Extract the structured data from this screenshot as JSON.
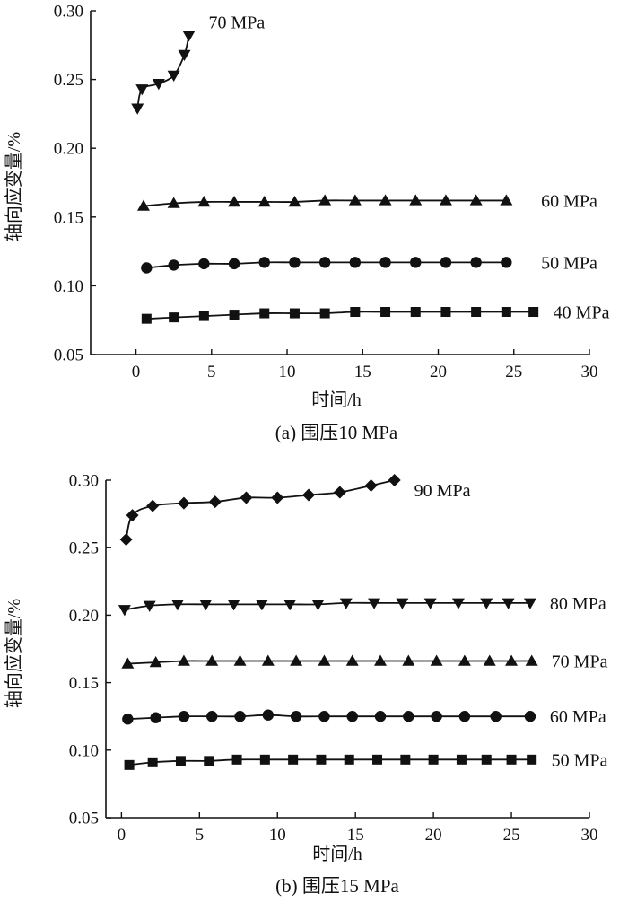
{
  "chart_data": [
    {
      "type": "scatter",
      "caption": "(a) 围压10 MPa",
      "xlabel": "时间/h",
      "ylabel": "轴向应变量/%",
      "xlim": [
        -3,
        30
      ],
      "ylim": [
        0.05,
        0.3
      ],
      "xticks": [
        0,
        5,
        10,
        15,
        20,
        25,
        30
      ],
      "yticks": [
        "0.05",
        "0.10",
        "0.15",
        "0.20",
        "0.25",
        "0.30"
      ],
      "grid": false,
      "series": [
        {
          "name": "70 MPa",
          "marker": "triangle-down",
          "x": [
            0.1,
            0.4,
            1.5,
            2.5,
            3.2,
            3.5
          ],
          "y": [
            0.229,
            0.243,
            0.247,
            0.253,
            0.268,
            0.282
          ]
        },
        {
          "name": "60 MPa",
          "marker": "triangle-up",
          "x": [
            0.5,
            2.5,
            4.5,
            6.5,
            8.5,
            10.5,
            12.5,
            14.5,
            16.5,
            18.5,
            20.5,
            22.5,
            24.5
          ],
          "y": [
            0.158,
            0.16,
            0.161,
            0.161,
            0.161,
            0.161,
            0.162,
            0.162,
            0.162,
            0.162,
            0.162,
            0.162,
            0.162
          ]
        },
        {
          "name": "50 MPa",
          "marker": "circle",
          "x": [
            0.7,
            2.5,
            4.5,
            6.5,
            8.5,
            10.5,
            12.5,
            14.5,
            16.5,
            18.5,
            20.5,
            22.5,
            24.5
          ],
          "y": [
            0.113,
            0.115,
            0.116,
            0.116,
            0.117,
            0.117,
            0.117,
            0.117,
            0.117,
            0.117,
            0.117,
            0.117,
            0.117
          ]
        },
        {
          "name": "40 MPa",
          "marker": "square",
          "x": [
            0.7,
            2.5,
            4.5,
            6.5,
            8.5,
            10.5,
            12.5,
            14.5,
            16.5,
            18.5,
            20.5,
            22.5,
            24.5,
            26.3
          ],
          "y": [
            0.076,
            0.077,
            0.078,
            0.079,
            0.08,
            0.08,
            0.08,
            0.081,
            0.081,
            0.081,
            0.081,
            0.081,
            0.081,
            0.081
          ]
        }
      ]
    },
    {
      "type": "scatter",
      "caption": "(b) 围压15 MPa",
      "xlabel": "时间/h",
      "ylabel": "轴向应变量/%",
      "xlim": [
        -1,
        30
      ],
      "ylim": [
        0.05,
        0.3
      ],
      "xticks": [
        0,
        5,
        10,
        15,
        20,
        25,
        30
      ],
      "yticks": [
        "0.05",
        "0.10",
        "0.15",
        "0.20",
        "0.25",
        "0.30"
      ],
      "grid": false,
      "series": [
        {
          "name": "90 MPa",
          "marker": "diamond",
          "x": [
            0.3,
            0.7,
            2.0,
            4.0,
            6.0,
            8.0,
            10.0,
            12.0,
            14.0,
            16.0,
            17.5
          ],
          "y": [
            0.256,
            0.274,
            0.281,
            0.283,
            0.284,
            0.287,
            0.287,
            0.289,
            0.291,
            0.296,
            0.3
          ]
        },
        {
          "name": "80 MPa",
          "marker": "triangle-down",
          "x": [
            0.2,
            1.8,
            3.6,
            5.4,
            7.2,
            9.0,
            10.8,
            12.6,
            14.4,
            16.2,
            18.0,
            19.8,
            21.6,
            23.4,
            24.8,
            26.2
          ],
          "y": [
            0.204,
            0.207,
            0.208,
            0.208,
            0.208,
            0.208,
            0.208,
            0.208,
            0.209,
            0.209,
            0.209,
            0.209,
            0.209,
            0.209,
            0.209,
            0.209
          ]
        },
        {
          "name": "70 MPa",
          "marker": "triangle-up",
          "x": [
            0.4,
            2.2,
            4.0,
            5.8,
            7.6,
            9.4,
            11.2,
            13.0,
            14.8,
            16.6,
            18.4,
            20.2,
            22.0,
            23.6,
            25.0,
            26.3
          ],
          "y": [
            0.164,
            0.165,
            0.166,
            0.166,
            0.166,
            0.166,
            0.166,
            0.166,
            0.166,
            0.166,
            0.166,
            0.166,
            0.166,
            0.166,
            0.166,
            0.166
          ]
        },
        {
          "name": "60 MPa",
          "marker": "circle",
          "x": [
            0.4,
            2.2,
            4.0,
            5.8,
            7.6,
            9.4,
            11.2,
            13.0,
            14.8,
            16.6,
            18.4,
            20.2,
            22.0,
            24.0,
            26.2
          ],
          "y": [
            0.123,
            0.124,
            0.125,
            0.125,
            0.125,
            0.126,
            0.125,
            0.125,
            0.125,
            0.125,
            0.125,
            0.125,
            0.125,
            0.125,
            0.125
          ]
        },
        {
          "name": "50 MPa",
          "marker": "square",
          "x": [
            0.5,
            2.0,
            3.8,
            5.6,
            7.4,
            9.2,
            11.0,
            12.8,
            14.6,
            16.4,
            18.2,
            20.0,
            21.8,
            23.4,
            25.0,
            26.3
          ],
          "y": [
            0.089,
            0.091,
            0.092,
            0.092,
            0.093,
            0.093,
            0.093,
            0.093,
            0.093,
            0.093,
            0.093,
            0.093,
            0.093,
            0.093,
            0.093,
            0.093
          ]
        }
      ]
    }
  ]
}
